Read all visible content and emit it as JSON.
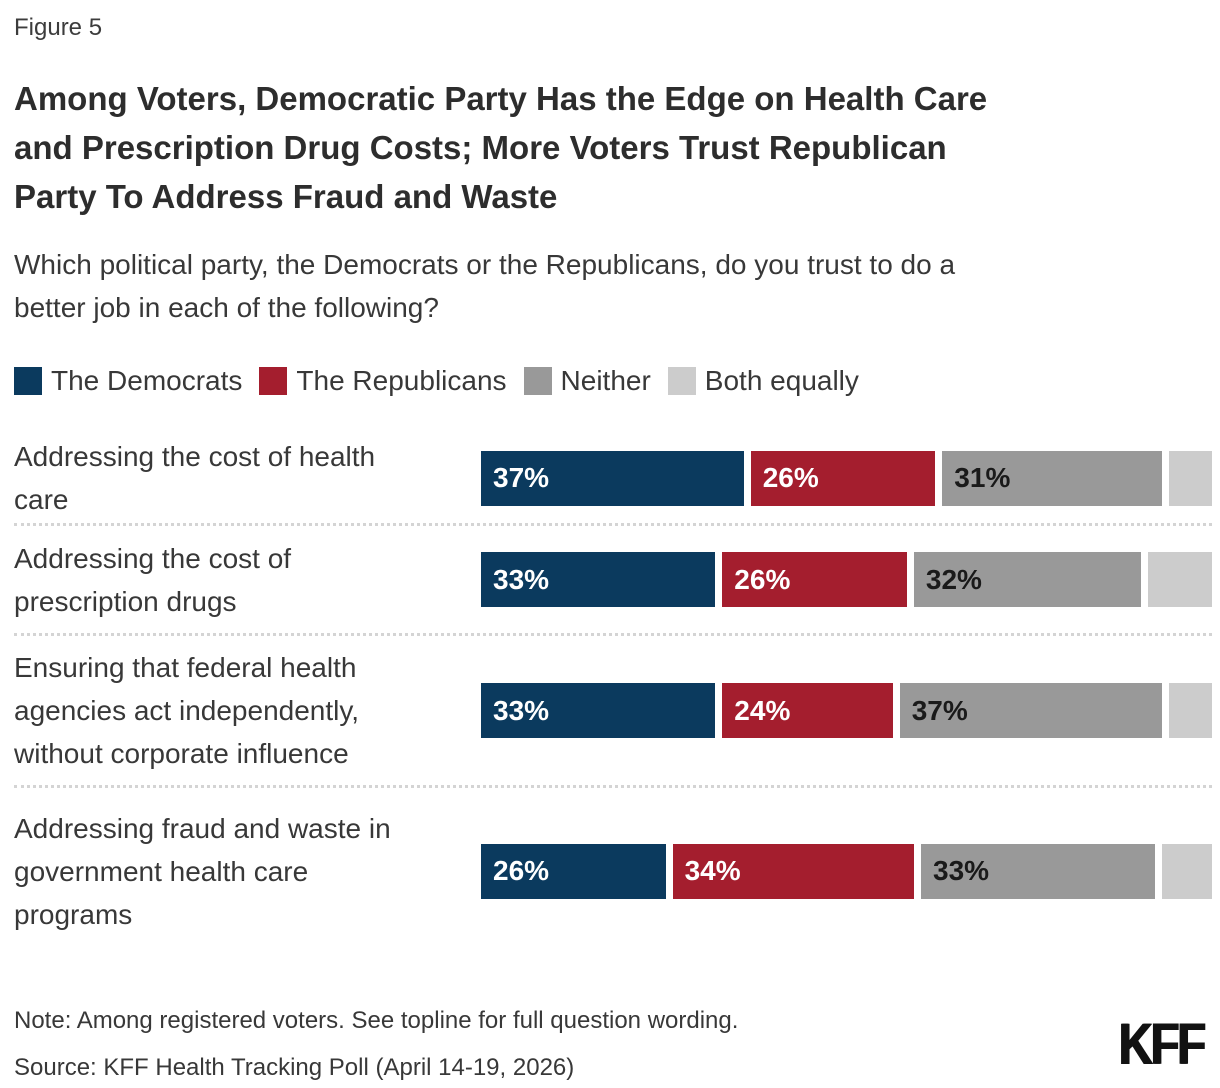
{
  "figure_label": "Figure 5",
  "title": "Among Voters, Democratic Party Has the Edge on Health Care\nand Prescription Drug Costs; More Voters Trust Republican\nParty To Address Fraud and Waste",
  "subtitle": "Which political party, the Democrats or the Republicans, do you trust to do a\nbetter job in each of the following?",
  "legend": [
    {
      "label": "The Democrats",
      "color": "#0b3a5e"
    },
    {
      "label": "The Republicans",
      "color": "#a41e2e"
    },
    {
      "label": "Neither",
      "color": "#999999"
    },
    {
      "label": "Both equally",
      "color": "#cccccc"
    }
  ],
  "chart_data": {
    "type": "bar",
    "orientation": "horizontal",
    "stacked": true,
    "xlim": [
      0,
      100
    ],
    "value_suffix": "%",
    "grid": false,
    "legend_position": "top",
    "categories": [
      "Addressing the cost of health\ncare",
      "Addressing the cost of\nprescription drugs",
      "Ensuring that federal health\nagencies act independently,\nwithout corporate influence",
      "Addressing fraud and waste in\ngovernment health care\nprograms"
    ],
    "series": [
      {
        "name": "The Democrats",
        "color": "#0b3a5e",
        "text_color": "#ffffff",
        "show_labels": true,
        "values": [
          37,
          33,
          33,
          26
        ]
      },
      {
        "name": "The Republicans",
        "color": "#a41e2e",
        "text_color": "#ffffff",
        "show_labels": true,
        "values": [
          26,
          26,
          24,
          34
        ]
      },
      {
        "name": "Neither",
        "color": "#999999",
        "text_color": "#1a1a1a",
        "show_labels": true,
        "values": [
          31,
          32,
          37,
          33
        ]
      },
      {
        "name": "Both equally",
        "color": "#cccccc",
        "text_color": "#1a1a1a",
        "show_labels": false,
        "values": [
          6,
          9,
          6,
          7
        ]
      }
    ]
  },
  "note": "Note: Among registered voters. See topline for full question wording.",
  "source": "Source: KFF Health Tracking Poll (April 14-19, 2026)",
  "logo_text": "KFF"
}
